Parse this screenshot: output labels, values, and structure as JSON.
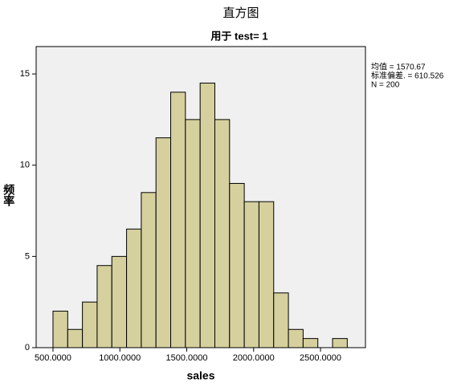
{
  "chart_data": {
    "type": "histogram",
    "title": "直方图",
    "subtitle": "用于 test= 1",
    "x_label": "sales",
    "y_label": "频率",
    "annotations": [
      "均值 = 1570.67",
      "标准偏差. = 610.526",
      "N = 200"
    ],
    "bins": [
      500,
      610,
      720,
      830,
      940,
      1050,
      1160,
      1270,
      1380,
      1490,
      1600,
      1710,
      1820,
      1930,
      2040,
      2150,
      2260,
      2370,
      2480,
      2590,
      2700
    ],
    "values": [
      2,
      1,
      2.5,
      4.5,
      5,
      6.5,
      8.5,
      11.5,
      14,
      12.5,
      14.5,
      12.5,
      9,
      8,
      8,
      3,
      1,
      0.5,
      0,
      0.5
    ],
    "color": "#d6d09e",
    "xlim": [
      374,
      2836
    ],
    "xticks": [
      {
        "value": 500,
        "label": "500.0000"
      },
      {
        "value": 1000,
        "label": "1000.0000"
      },
      {
        "value": 1500,
        "label": "1500.0000"
      },
      {
        "value": 2000,
        "label": "2000.0000"
      },
      {
        "value": 2500,
        "label": "2500.0000"
      }
    ],
    "ylim": [
      0,
      16.5
    ],
    "yticks": [
      0,
      5,
      10,
      15
    ],
    "grid": false
  }
}
